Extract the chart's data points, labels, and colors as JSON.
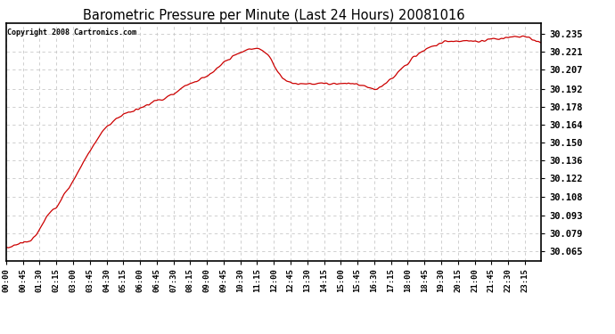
{
  "title": "Barometric Pressure per Minute (Last 24 Hours) 20081016",
  "copyright": "Copyright 2008 Cartronics.com",
  "line_color": "#cc0000",
  "background_color": "#ffffff",
  "plot_bg_color": "#ffffff",
  "grid_color": "#c8c8c8",
  "yticks": [
    30.065,
    30.079,
    30.093,
    30.108,
    30.122,
    30.136,
    30.15,
    30.164,
    30.178,
    30.192,
    30.207,
    30.221,
    30.235
  ],
  "ylim": [
    30.058,
    30.243
  ],
  "xtick_labels": [
    "00:00",
    "00:45",
    "01:30",
    "02:15",
    "03:00",
    "03:45",
    "04:30",
    "05:15",
    "06:00",
    "06:45",
    "07:30",
    "08:15",
    "09:00",
    "09:45",
    "10:30",
    "11:15",
    "12:00",
    "12:45",
    "13:30",
    "14:15",
    "15:00",
    "15:45",
    "16:30",
    "17:15",
    "18:00",
    "18:45",
    "19:30",
    "20:15",
    "21:00",
    "21:45",
    "22:30",
    "23:15"
  ],
  "ctrl_points": [
    [
      0.0,
      30.068
    ],
    [
      0.25,
      30.069
    ],
    [
      0.5,
      30.071
    ],
    [
      0.75,
      30.072
    ],
    [
      1.0,
      30.073
    ],
    [
      1.25,
      30.076
    ],
    [
      1.5,
      30.082
    ],
    [
      1.75,
      30.09
    ],
    [
      2.0,
      30.096
    ],
    [
      2.25,
      30.1
    ],
    [
      2.5,
      30.107
    ],
    [
      2.75,
      30.113
    ],
    [
      3.0,
      30.12
    ],
    [
      3.25,
      30.128
    ],
    [
      3.5,
      30.136
    ],
    [
      3.75,
      30.143
    ],
    [
      4.0,
      30.15
    ],
    [
      4.25,
      30.157
    ],
    [
      4.5,
      30.162
    ],
    [
      4.75,
      30.166
    ],
    [
      5.0,
      30.169
    ],
    [
      5.25,
      30.172
    ],
    [
      5.5,
      30.174
    ],
    [
      5.75,
      30.175
    ],
    [
      6.0,
      30.177
    ],
    [
      6.25,
      30.179
    ],
    [
      6.5,
      30.181
    ],
    [
      6.75,
      30.183
    ],
    [
      7.0,
      30.184
    ],
    [
      7.25,
      30.186
    ],
    [
      7.5,
      30.188
    ],
    [
      7.75,
      30.191
    ],
    [
      8.0,
      30.194
    ],
    [
      8.25,
      30.196
    ],
    [
      8.5,
      30.198
    ],
    [
      8.75,
      30.2
    ],
    [
      9.0,
      30.202
    ],
    [
      9.25,
      30.205
    ],
    [
      9.5,
      30.208
    ],
    [
      9.75,
      30.212
    ],
    [
      10.0,
      30.215
    ],
    [
      10.25,
      30.218
    ],
    [
      10.5,
      30.22
    ],
    [
      10.75,
      30.222
    ],
    [
      11.0,
      30.223
    ],
    [
      11.25,
      30.224
    ],
    [
      11.5,
      30.222
    ],
    [
      11.75,
      30.218
    ],
    [
      12.0,
      30.211
    ],
    [
      12.25,
      30.204
    ],
    [
      12.5,
      30.199
    ],
    [
      12.75,
      30.197
    ],
    [
      13.0,
      30.196
    ],
    [
      13.25,
      30.196
    ],
    [
      13.5,
      30.196
    ],
    [
      13.75,
      30.196
    ],
    [
      14.0,
      30.196
    ],
    [
      14.25,
      30.196
    ],
    [
      14.5,
      30.196
    ],
    [
      14.75,
      30.196
    ],
    [
      15.0,
      30.196
    ],
    [
      15.25,
      30.196
    ],
    [
      15.5,
      30.196
    ],
    [
      15.75,
      30.195
    ],
    [
      16.0,
      30.194
    ],
    [
      16.25,
      30.193
    ],
    [
      16.5,
      30.191
    ],
    [
      16.75,
      30.193
    ],
    [
      17.0,
      30.196
    ],
    [
      17.25,
      30.199
    ],
    [
      17.5,
      30.204
    ],
    [
      17.75,
      30.208
    ],
    [
      18.0,
      30.212
    ],
    [
      18.25,
      30.216
    ],
    [
      18.5,
      30.219
    ],
    [
      18.75,
      30.222
    ],
    [
      19.0,
      30.224
    ],
    [
      19.25,
      30.226
    ],
    [
      19.5,
      30.228
    ],
    [
      19.75,
      30.229
    ],
    [
      20.0,
      30.229
    ],
    [
      20.25,
      30.229
    ],
    [
      20.5,
      30.229
    ],
    [
      20.75,
      30.229
    ],
    [
      21.0,
      30.229
    ],
    [
      21.25,
      30.229
    ],
    [
      21.5,
      30.23
    ],
    [
      21.75,
      30.231
    ],
    [
      22.0,
      30.231
    ],
    [
      22.25,
      30.231
    ],
    [
      22.5,
      30.232
    ],
    [
      22.75,
      30.233
    ],
    [
      23.0,
      30.233
    ],
    [
      23.25,
      30.233
    ],
    [
      23.5,
      30.231
    ],
    [
      23.75,
      30.229
    ],
    [
      24.0,
      30.228
    ]
  ],
  "noise_std": 0.0012,
  "noise_sigma": 3,
  "seed": 7
}
